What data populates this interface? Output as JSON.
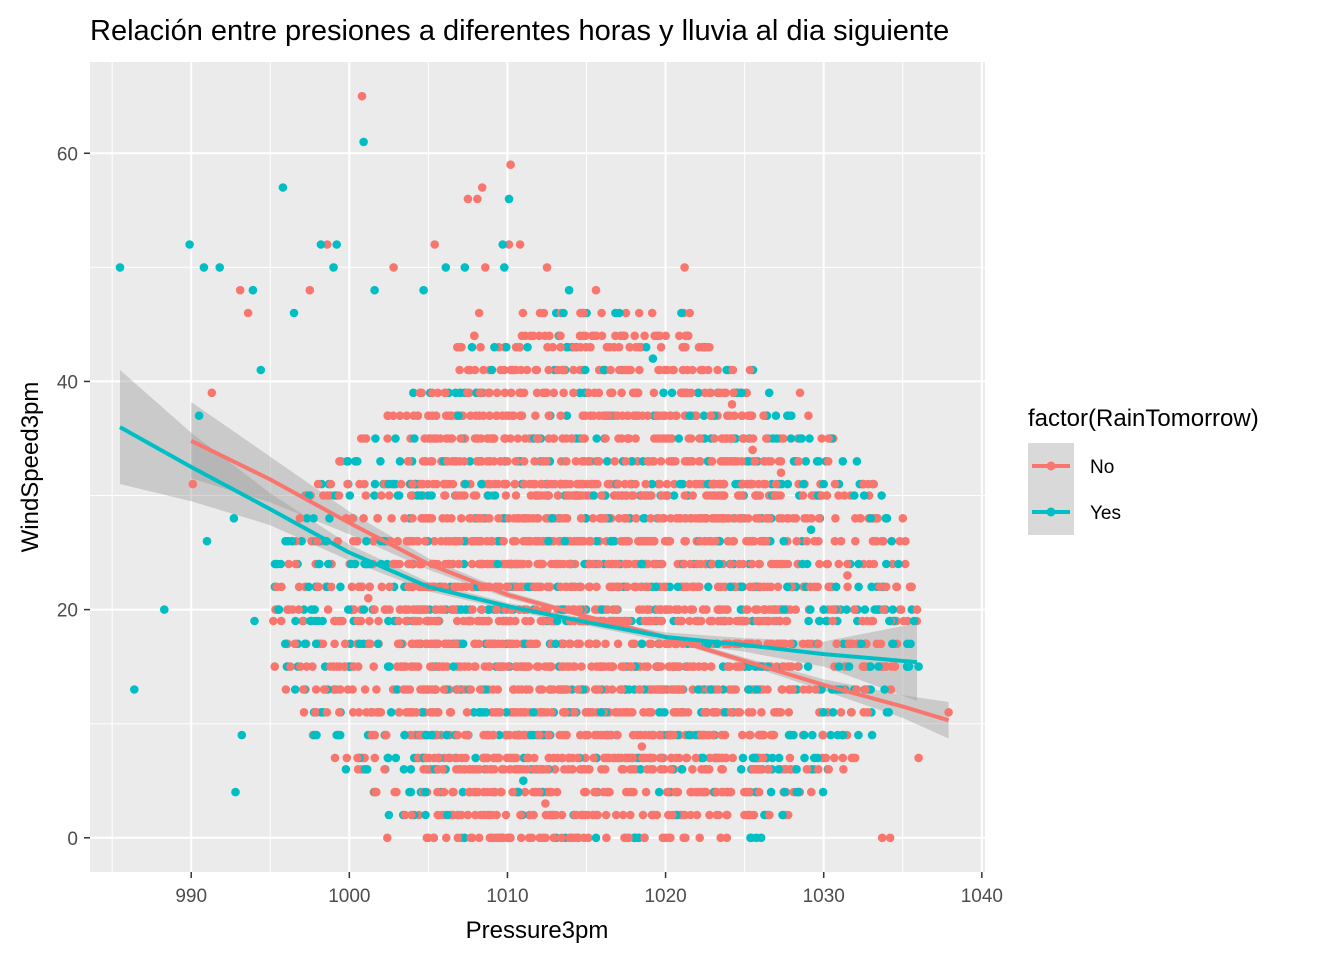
{
  "chart_data": {
    "type": "scatter",
    "title": "Relación entre presiones a diferentes horas y lluvia al dia siguiente",
    "xlabel": "Pressure3pm",
    "ylabel": "WindSpeed3pm",
    "xlim": [
      983.6,
      1040.2
    ],
    "ylim": [
      -3,
      68
    ],
    "xticks": [
      990,
      1000,
      1010,
      1020,
      1030,
      1040
    ],
    "yticks": [
      0,
      20,
      40,
      60
    ],
    "grid": true,
    "legend": {
      "title": "factor(RainTomorrow)",
      "position": "right"
    },
    "series": [
      {
        "name": "No",
        "color": "#F8766D",
        "points": [
          [
            1000.8,
            65
          ],
          [
            1010.2,
            59
          ],
          [
            1008.4,
            57
          ],
          [
            1007.5,
            56
          ],
          [
            1008.1,
            56
          ],
          [
            998.6,
            52
          ],
          [
            1005.4,
            52
          ],
          [
            1010.1,
            52
          ],
          [
            1010.8,
            52
          ],
          [
            1021.2,
            50
          ],
          [
            1002.8,
            50
          ],
          [
            1008.6,
            50
          ],
          [
            1012.5,
            50
          ],
          [
            990.1,
            31
          ],
          [
            991.3,
            39
          ],
          [
            993.1,
            48
          ],
          [
            993.6,
            46
          ],
          [
            997.5,
            48
          ],
          [
            1015.6,
            48
          ],
          [
            1035.9,
            20
          ],
          [
            1037.9,
            11
          ],
          [
            1033.7,
            0
          ],
          [
            1034.2,
            0
          ],
          [
            1002.4,
            0
          ],
          [
            1004.9,
            0
          ],
          [
            1009.0,
            0
          ],
          [
            1035.0,
            28
          ],
          [
            1032.0,
            26
          ],
          [
            1030.2,
            30
          ],
          [
            1028.5,
            39
          ],
          [
            1024.2,
            38
          ],
          [
            1025.5,
            34
          ],
          [
            1027.3,
            32
          ],
          [
            995.4,
            22
          ],
          [
            997.9,
            13
          ],
          [
            999.4,
            15
          ],
          [
            1001.2,
            21
          ],
          [
            1003.6,
            11
          ],
          [
            1006.8,
            7
          ],
          [
            1012.4,
            3
          ],
          [
            1018.5,
            8
          ],
          [
            1024.0,
            17
          ],
          [
            1031.5,
            23
          ],
          [
            1034.5,
            15
          ],
          [
            1036.0,
            7
          ]
        ],
        "band_min": 990,
        "band_max": 1037.9,
        "smooth": [
          {
            "x": 990,
            "y": 34.8,
            "lo": 31.5,
            "hi": 38.2
          },
          {
            "x": 995,
            "y": 31.4,
            "lo": 29.4,
            "hi": 33.4
          },
          {
            "x": 1000,
            "y": 27.6,
            "lo": 26.6,
            "hi": 28.6
          },
          {
            "x": 1005,
            "y": 24.0,
            "lo": 23.5,
            "hi": 24.5
          },
          {
            "x": 1010,
            "y": 21.3,
            "lo": 21.0,
            "hi": 21.6
          },
          {
            "x": 1015,
            "y": 19.4,
            "lo": 19.2,
            "hi": 19.6
          },
          {
            "x": 1020,
            "y": 17.6,
            "lo": 17.4,
            "hi": 17.8
          },
          {
            "x": 1025,
            "y": 15.5,
            "lo": 15.2,
            "hi": 15.8
          },
          {
            "x": 1030,
            "y": 13.4,
            "lo": 12.9,
            "hi": 13.9
          },
          {
            "x": 1035,
            "y": 11.5,
            "lo": 10.5,
            "hi": 12.5
          },
          {
            "x": 1037.9,
            "y": 10.3,
            "lo": 8.7,
            "hi": 11.9
          }
        ]
      },
      {
        "name": "Yes",
        "color": "#00BFC4",
        "points": [
          [
            1000.9,
            61
          ],
          [
            995.8,
            57
          ],
          [
            1010.1,
            56
          ],
          [
            985.5,
            50
          ],
          [
            989.9,
            52
          ],
          [
            990.8,
            50
          ],
          [
            991.8,
            50
          ],
          [
            998.2,
            52
          ],
          [
            999.2,
            52
          ],
          [
            999.0,
            50
          ],
          [
            1001.6,
            48
          ],
          [
            1004.7,
            48
          ],
          [
            1006.1,
            50
          ],
          [
            1007.3,
            50
          ],
          [
            1009.7,
            52
          ],
          [
            1013.9,
            48
          ],
          [
            1019.2,
            42
          ],
          [
            1021.0,
            46
          ],
          [
            1009.8,
            50
          ],
          [
            986.4,
            13
          ],
          [
            988.3,
            20
          ],
          [
            991.0,
            26
          ],
          [
            992.7,
            28
          ],
          [
            992.8,
            4
          ],
          [
            993.2,
            9
          ],
          [
            994.0,
            19
          ],
          [
            994.4,
            41
          ],
          [
            993.9,
            48
          ],
          [
            990.5,
            37
          ],
          [
            996.5,
            46
          ],
          [
            1032.1,
            33
          ],
          [
            1036.0,
            15
          ],
          [
            1029.2,
            27
          ],
          [
            1030.0,
            31
          ],
          [
            997.2,
            17
          ],
          [
            999.2,
            9
          ],
          [
            1002.5,
            2
          ],
          [
            1004.8,
            4
          ],
          [
            1006.2,
            2
          ],
          [
            1011.0,
            5
          ]
        ],
        "band_min": 985.5,
        "band_max": 1035.9,
        "smooth": [
          {
            "x": 985.5,
            "y": 36.0,
            "lo": 31.0,
            "hi": 41.0
          },
          {
            "x": 990,
            "y": 32.5,
            "lo": 29.5,
            "hi": 35.5
          },
          {
            "x": 995,
            "y": 28.8,
            "lo": 27.4,
            "hi": 30.2
          },
          {
            "x": 1000,
            "y": 25.0,
            "lo": 24.3,
            "hi": 25.7
          },
          {
            "x": 1005,
            "y": 22.0,
            "lo": 21.6,
            "hi": 22.4
          },
          {
            "x": 1010,
            "y": 20.3,
            "lo": 20.0,
            "hi": 20.6
          },
          {
            "x": 1015,
            "y": 18.9,
            "lo": 18.6,
            "hi": 19.2
          },
          {
            "x": 1020,
            "y": 17.6,
            "lo": 17.2,
            "hi": 18.0
          },
          {
            "x": 1025,
            "y": 16.9,
            "lo": 16.3,
            "hi": 17.5
          },
          {
            "x": 1030,
            "y": 16.1,
            "lo": 15.0,
            "hi": 17.2
          },
          {
            "x": 1035.9,
            "y": 15.4,
            "lo": 12.0,
            "hi": 18.8
          }
        ]
      }
    ]
  }
}
